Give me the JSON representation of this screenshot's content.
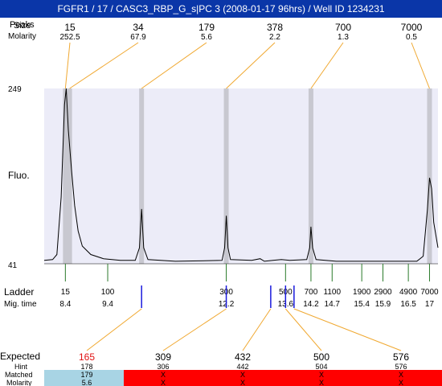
{
  "window": {
    "title": "FGFR1 / 17 / CASC3_RBP_G_s|PC 3 (2008-01-17 96hrs) / Well ID 1234231"
  },
  "labels": {
    "peaks": "Peaks",
    "size": "Size",
    "molarity": "Molarity",
    "fluo": "Fluo.",
    "ladder": "Ladder",
    "mig_time": "Mig. time",
    "expected": "Expected",
    "hint": "Hint",
    "matched": "Matched",
    "molarity_bottom": "Molarity"
  },
  "colors": {
    "title_bg": "#0a36a8",
    "plot_bg": "#ececf8",
    "band": "#c8c8d0",
    "connector": "#f0a830",
    "ladder_tick": "#2a7a2a",
    "marker": "#1a1adc",
    "expected_highlight": "#e01010",
    "matched_ok": "#a8d4e4",
    "matched_fail": "#ff0000"
  },
  "chart_data": {
    "type": "line",
    "ylabel": "Fluo.",
    "ylim": [
      41,
      249
    ],
    "xlim": [
      7.9,
      17.2
    ],
    "peaks": [
      {
        "size": "15",
        "molarity": "252.5",
        "mig_time": 8.4
      },
      {
        "size": "34",
        "molarity": "67.9",
        "mig_time": 8.5
      },
      {
        "size": "179",
        "molarity": "5.6",
        "mig_time": 10.2
      },
      {
        "size": "378",
        "molarity": "2.2",
        "mig_time": 12.2
      },
      {
        "size": "700",
        "molarity": "1.3",
        "mig_time": 14.2
      },
      {
        "size": "7000",
        "molarity": "0.5",
        "mig_time": 17.0
      }
    ],
    "ladder": [
      {
        "size": "15",
        "mig_time": "8.4",
        "t": 8.4
      },
      {
        "size": "100",
        "mig_time": "9.4",
        "t": 9.4
      },
      {
        "size": "300",
        "mig_time": "12.2",
        "t": 12.2
      },
      {
        "size": "500",
        "mig_time": "13.6",
        "t": 13.6
      },
      {
        "size": "700",
        "mig_time": "14.2",
        "t": 14.2
      },
      {
        "size": "1100",
        "mig_time": "14.7",
        "t": 14.7
      },
      {
        "size": "1900",
        "mig_time": "15.4",
        "t": 15.4
      },
      {
        "size": "2900",
        "mig_time": "15.9",
        "t": 15.9
      },
      {
        "size": "4900",
        "mig_time": "16.5",
        "t": 16.5
      },
      {
        "size": "7000",
        "mig_time": "17",
        "t": 17.0
      }
    ],
    "expected_markers": [
      10.2,
      12.2,
      13.25,
      13.6,
      13.8
    ],
    "expected": [
      {
        "expected": "165",
        "hint": "178",
        "matched": "179",
        "molarity": "5.6",
        "ok": true
      },
      {
        "expected": "309",
        "hint": "306",
        "matched": "X",
        "molarity": "X",
        "ok": false
      },
      {
        "expected": "432",
        "hint": "442",
        "matched": "X",
        "molarity": "X",
        "ok": false
      },
      {
        "expected": "500",
        "hint": "504",
        "matched": "X",
        "molarity": "X",
        "ok": false
      },
      {
        "expected": "576",
        "hint": "576",
        "matched": "X",
        "molarity": "X",
        "ok": false
      }
    ],
    "trace": [
      [
        7.9,
        45
      ],
      [
        8.1,
        46
      ],
      [
        8.2,
        52
      ],
      [
        8.3,
        120
      ],
      [
        8.38,
        230
      ],
      [
        8.42,
        249
      ],
      [
        8.47,
        200
      ],
      [
        8.55,
        150
      ],
      [
        8.62,
        110
      ],
      [
        8.7,
        80
      ],
      [
        8.8,
        62
      ],
      [
        9.0,
        52
      ],
      [
        9.3,
        47
      ],
      [
        9.7,
        45
      ],
      [
        10.05,
        45
      ],
      [
        10.15,
        60
      ],
      [
        10.2,
        106
      ],
      [
        10.25,
        60
      ],
      [
        10.35,
        46
      ],
      [
        11.0,
        44
      ],
      [
        12.1,
        45
      ],
      [
        12.16,
        60
      ],
      [
        12.2,
        98
      ],
      [
        12.24,
        60
      ],
      [
        12.3,
        46
      ],
      [
        12.8,
        45
      ],
      [
        13.0,
        47
      ],
      [
        13.1,
        44
      ],
      [
        13.3,
        45
      ],
      [
        13.5,
        46
      ],
      [
        13.7,
        45
      ],
      [
        14.1,
        46
      ],
      [
        14.17,
        60
      ],
      [
        14.2,
        85
      ],
      [
        14.24,
        60
      ],
      [
        14.32,
        46
      ],
      [
        14.8,
        44
      ],
      [
        16.0,
        44
      ],
      [
        16.7,
        44
      ],
      [
        16.85,
        50
      ],
      [
        16.95,
        105
      ],
      [
        17.0,
        143
      ],
      [
        17.05,
        130
      ],
      [
        17.1,
        90
      ],
      [
        17.2,
        60
      ]
    ]
  }
}
